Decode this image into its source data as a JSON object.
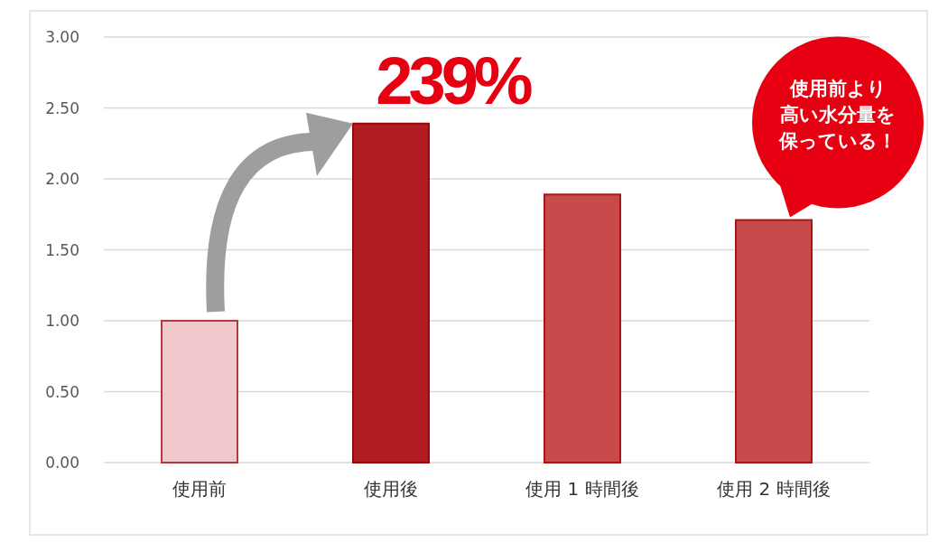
{
  "chart_data": {
    "type": "bar",
    "categories": [
      "使用前",
      "使用後",
      "使用 1 時間後",
      "使用 2 時間後"
    ],
    "values": [
      1.0,
      2.39,
      1.89,
      1.71
    ],
    "colors": [
      "#f0c8cb",
      "#b01c22",
      "#c84a4a",
      "#c84a4a"
    ],
    "ylim": [
      0,
      3
    ],
    "yticks": [
      {
        "value": 0,
        "label": "0.00"
      },
      {
        "value": 0.5,
        "label": "0.50"
      },
      {
        "value": 1,
        "label": "1.00"
      },
      {
        "value": 1.5,
        "label": "1.50"
      },
      {
        "value": 2,
        "label": "2.00"
      },
      {
        "value": 2.5,
        "label": "2.50"
      },
      {
        "value": 3,
        "label": "3.00"
      }
    ],
    "grid": "y",
    "annotations": [
      {
        "text": "239%",
        "x": "使用後",
        "y": 2.39
      },
      "使用前より高い水分量を保っている！"
    ]
  }
}
